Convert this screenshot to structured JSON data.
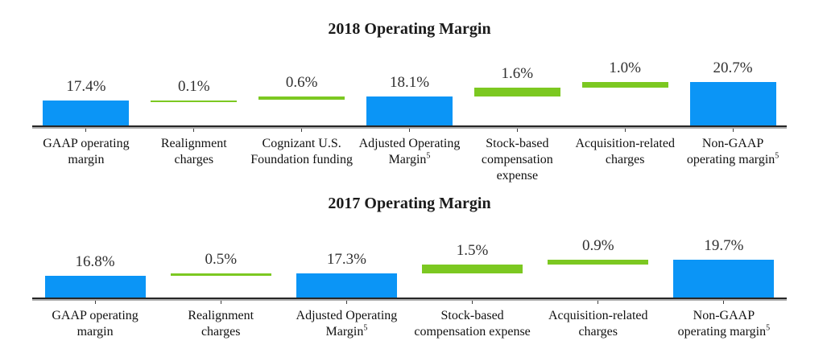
{
  "colors": {
    "bar_blue": "#0b95f6",
    "bar_green": "#7cc821",
    "axis": "#262626",
    "axis_shadow": "#ababab",
    "tick": "#3f3f3f",
    "value_text": "#303030",
    "label_text": "#111111",
    "background": "#ffffff"
  },
  "chart_data": [
    {
      "type": "bar",
      "subtype": "waterfall",
      "title": "2018 Operating Margin",
      "unit": "%",
      "axis": {
        "min_hint": 13.0,
        "gridlines": false,
        "legend": "none"
      },
      "items": [
        {
          "label_lines": [
            "GAAP operating",
            "margin"
          ],
          "value": 17.4,
          "value_label": "17.4%",
          "kind": "total"
        },
        {
          "label_lines": [
            "Realignment",
            "charges"
          ],
          "value": 0.1,
          "value_label": "0.1%",
          "kind": "delta"
        },
        {
          "label_lines": [
            "Cognizant U.S.",
            "Foundation funding"
          ],
          "value": 0.6,
          "value_label": "0.6%",
          "kind": "delta"
        },
        {
          "label_lines": [
            "Adjusted Operating",
            "Margin^5"
          ],
          "value": 18.1,
          "value_label": "18.1%",
          "kind": "total"
        },
        {
          "label_lines": [
            "Stock-based",
            "compensation",
            "expense"
          ],
          "value": 1.6,
          "value_label": "1.6%",
          "kind": "delta"
        },
        {
          "label_lines": [
            "Acquisition-related",
            "charges"
          ],
          "value": 1.0,
          "value_label": "1.0%",
          "kind": "delta"
        },
        {
          "label_lines": [
            "Non-GAAP",
            "operating margin^5"
          ],
          "value": 20.7,
          "value_label": "20.7%",
          "kind": "total"
        }
      ]
    },
    {
      "type": "bar",
      "subtype": "waterfall",
      "title": "2017 Operating Margin",
      "unit": "%",
      "axis": {
        "min_hint": 13.0,
        "gridlines": false,
        "legend": "none"
      },
      "items": [
        {
          "label_lines": [
            "GAAP operating",
            "margin"
          ],
          "value": 16.8,
          "value_label": "16.8%",
          "kind": "total"
        },
        {
          "label_lines": [
            "Realignment",
            "charges"
          ],
          "value": 0.5,
          "value_label": "0.5%",
          "kind": "delta"
        },
        {
          "label_lines": [
            "Adjusted Operating",
            "Margin^5"
          ],
          "value": 17.3,
          "value_label": "17.3%",
          "kind": "total"
        },
        {
          "label_lines": [
            "Stock-based",
            "compensation expense"
          ],
          "value": 1.5,
          "value_label": "1.5%",
          "kind": "delta"
        },
        {
          "label_lines": [
            "Acquisition-related",
            "charges"
          ],
          "value": 0.9,
          "value_label": "0.9%",
          "kind": "delta"
        },
        {
          "label_lines": [
            "Non-GAAP",
            "operating margin^5"
          ],
          "value": 19.7,
          "value_label": "19.7%",
          "kind": "total"
        }
      ]
    }
  ]
}
